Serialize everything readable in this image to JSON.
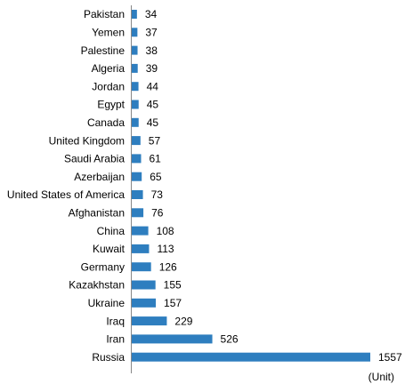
{
  "chart_data": {
    "type": "bar",
    "orientation": "horizontal",
    "categories": [
      "Pakistan",
      "Yemen",
      "Palestine",
      "Algeria",
      "Jordan",
      "Egypt",
      "Canada",
      "United Kingdom",
      "Saudi Arabia",
      "Azerbaijan",
      "United States of America",
      "Afghanistan",
      "China",
      "Kuwait",
      "Germany",
      "Kazakhstan",
      "Ukraine",
      "Iraq",
      "Iran",
      "Russia"
    ],
    "values": [
      34,
      37,
      38,
      39,
      44,
      45,
      45,
      57,
      61,
      65,
      73,
      76,
      108,
      113,
      126,
      155,
      157,
      229,
      526,
      1557
    ],
    "data_labels": [
      "34",
      "37",
      "38",
      "39",
      "44",
      "45",
      "45",
      "57",
      "61",
      "65",
      "73",
      "76",
      "108",
      "113",
      "126",
      "155",
      "157",
      "229",
      "526",
      "1557"
    ],
    "unit_label": "(Unit)",
    "title": "",
    "xlabel": "",
    "ylabel": "",
    "xlim": [
      0,
      1557
    ],
    "grid": false,
    "legend": "none",
    "bar_color": "#2e7ebf"
  }
}
